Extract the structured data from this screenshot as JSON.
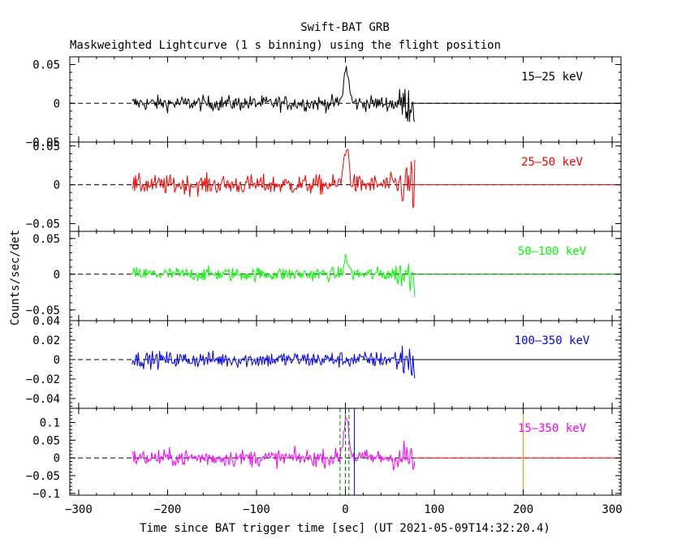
{
  "chart_data": {
    "type": "line",
    "title": "Swift-BAT GRB",
    "subtitle": "Maskweighted Lightcurve (1 s binning) using the flight position",
    "xlabel": "Time since BAT trigger time [sec] (UT 2021-05-09T14:32:20.4)",
    "ylabel": "Counts/sec/det",
    "xlim": [
      -310,
      310
    ],
    "xticks": [
      -300,
      -200,
      -100,
      0,
      100,
      200,
      300
    ],
    "xtick_labels": [
      "−300",
      "−200",
      "−100",
      "0",
      "100",
      "200",
      "300"
    ],
    "data_range": [
      -240,
      78
    ],
    "panels": [
      {
        "band": "15–25 keV",
        "color": "#000000",
        "ylim": [
          -0.05,
          0.06
        ],
        "yticks": [
          -0.05,
          0,
          0.05
        ],
        "ytick_labels": [
          "−0.05",
          "0",
          "0.05"
        ],
        "noise": 0.007,
        "peak": 0.045,
        "post_line": "#000000"
      },
      {
        "band": "25–50 keV",
        "color": "#ff0000",
        "ylim": [
          -0.06,
          0.055
        ],
        "yticks": [
          -0.05,
          0,
          0.05
        ],
        "ytick_labels": [
          "−0.05",
          "0",
          "0.05"
        ],
        "noise": 0.009,
        "peak": 0.05,
        "post_line": "#ff0000"
      },
      {
        "band": "50–100 keV",
        "color": "#00ff00",
        "ylim": [
          -0.065,
          0.06
        ],
        "yticks": [
          -0.05,
          0,
          0.05
        ],
        "ytick_labels": [
          "−0.05",
          "0",
          "0.05"
        ],
        "noise": 0.007,
        "peak": 0.02,
        "post_line": "#00aa00"
      },
      {
        "band": "100–350 keV",
        "color": "#0000ff",
        "ylim": [
          -0.05,
          0.04
        ],
        "yticks": [
          -0.04,
          -0.02,
          0,
          0.02,
          0.04
        ],
        "ytick_labels": [
          "−0.04",
          "−0.02",
          "0",
          "0.02",
          "0.04"
        ],
        "noise": 0.006,
        "peak": 0.0,
        "post_line": "#000000"
      },
      {
        "band": "15–350 keV",
        "color": "#ff00ff",
        "ylim": [
          -0.105,
          0.14
        ],
        "yticks": [
          -0.1,
          -0.05,
          0,
          0.05,
          0.1
        ],
        "ytick_labels": [
          "−0.1",
          "−0.05",
          "0",
          "0.05",
          "0.1"
        ],
        "noise": 0.017,
        "peak": 0.12,
        "post_line": "#ff0000"
      }
    ],
    "markers": [
      {
        "x": -6,
        "color": "#008000",
        "style": "dashed"
      },
      {
        "x": 0,
        "color": "#008000",
        "style": "dashed"
      },
      {
        "x": 4,
        "color": "#008000",
        "style": "dashed"
      },
      {
        "x": 10,
        "color": "#0000ff",
        "style": "solid"
      },
      {
        "x": 200,
        "color": "#ff8c00",
        "style": "solid"
      }
    ]
  }
}
